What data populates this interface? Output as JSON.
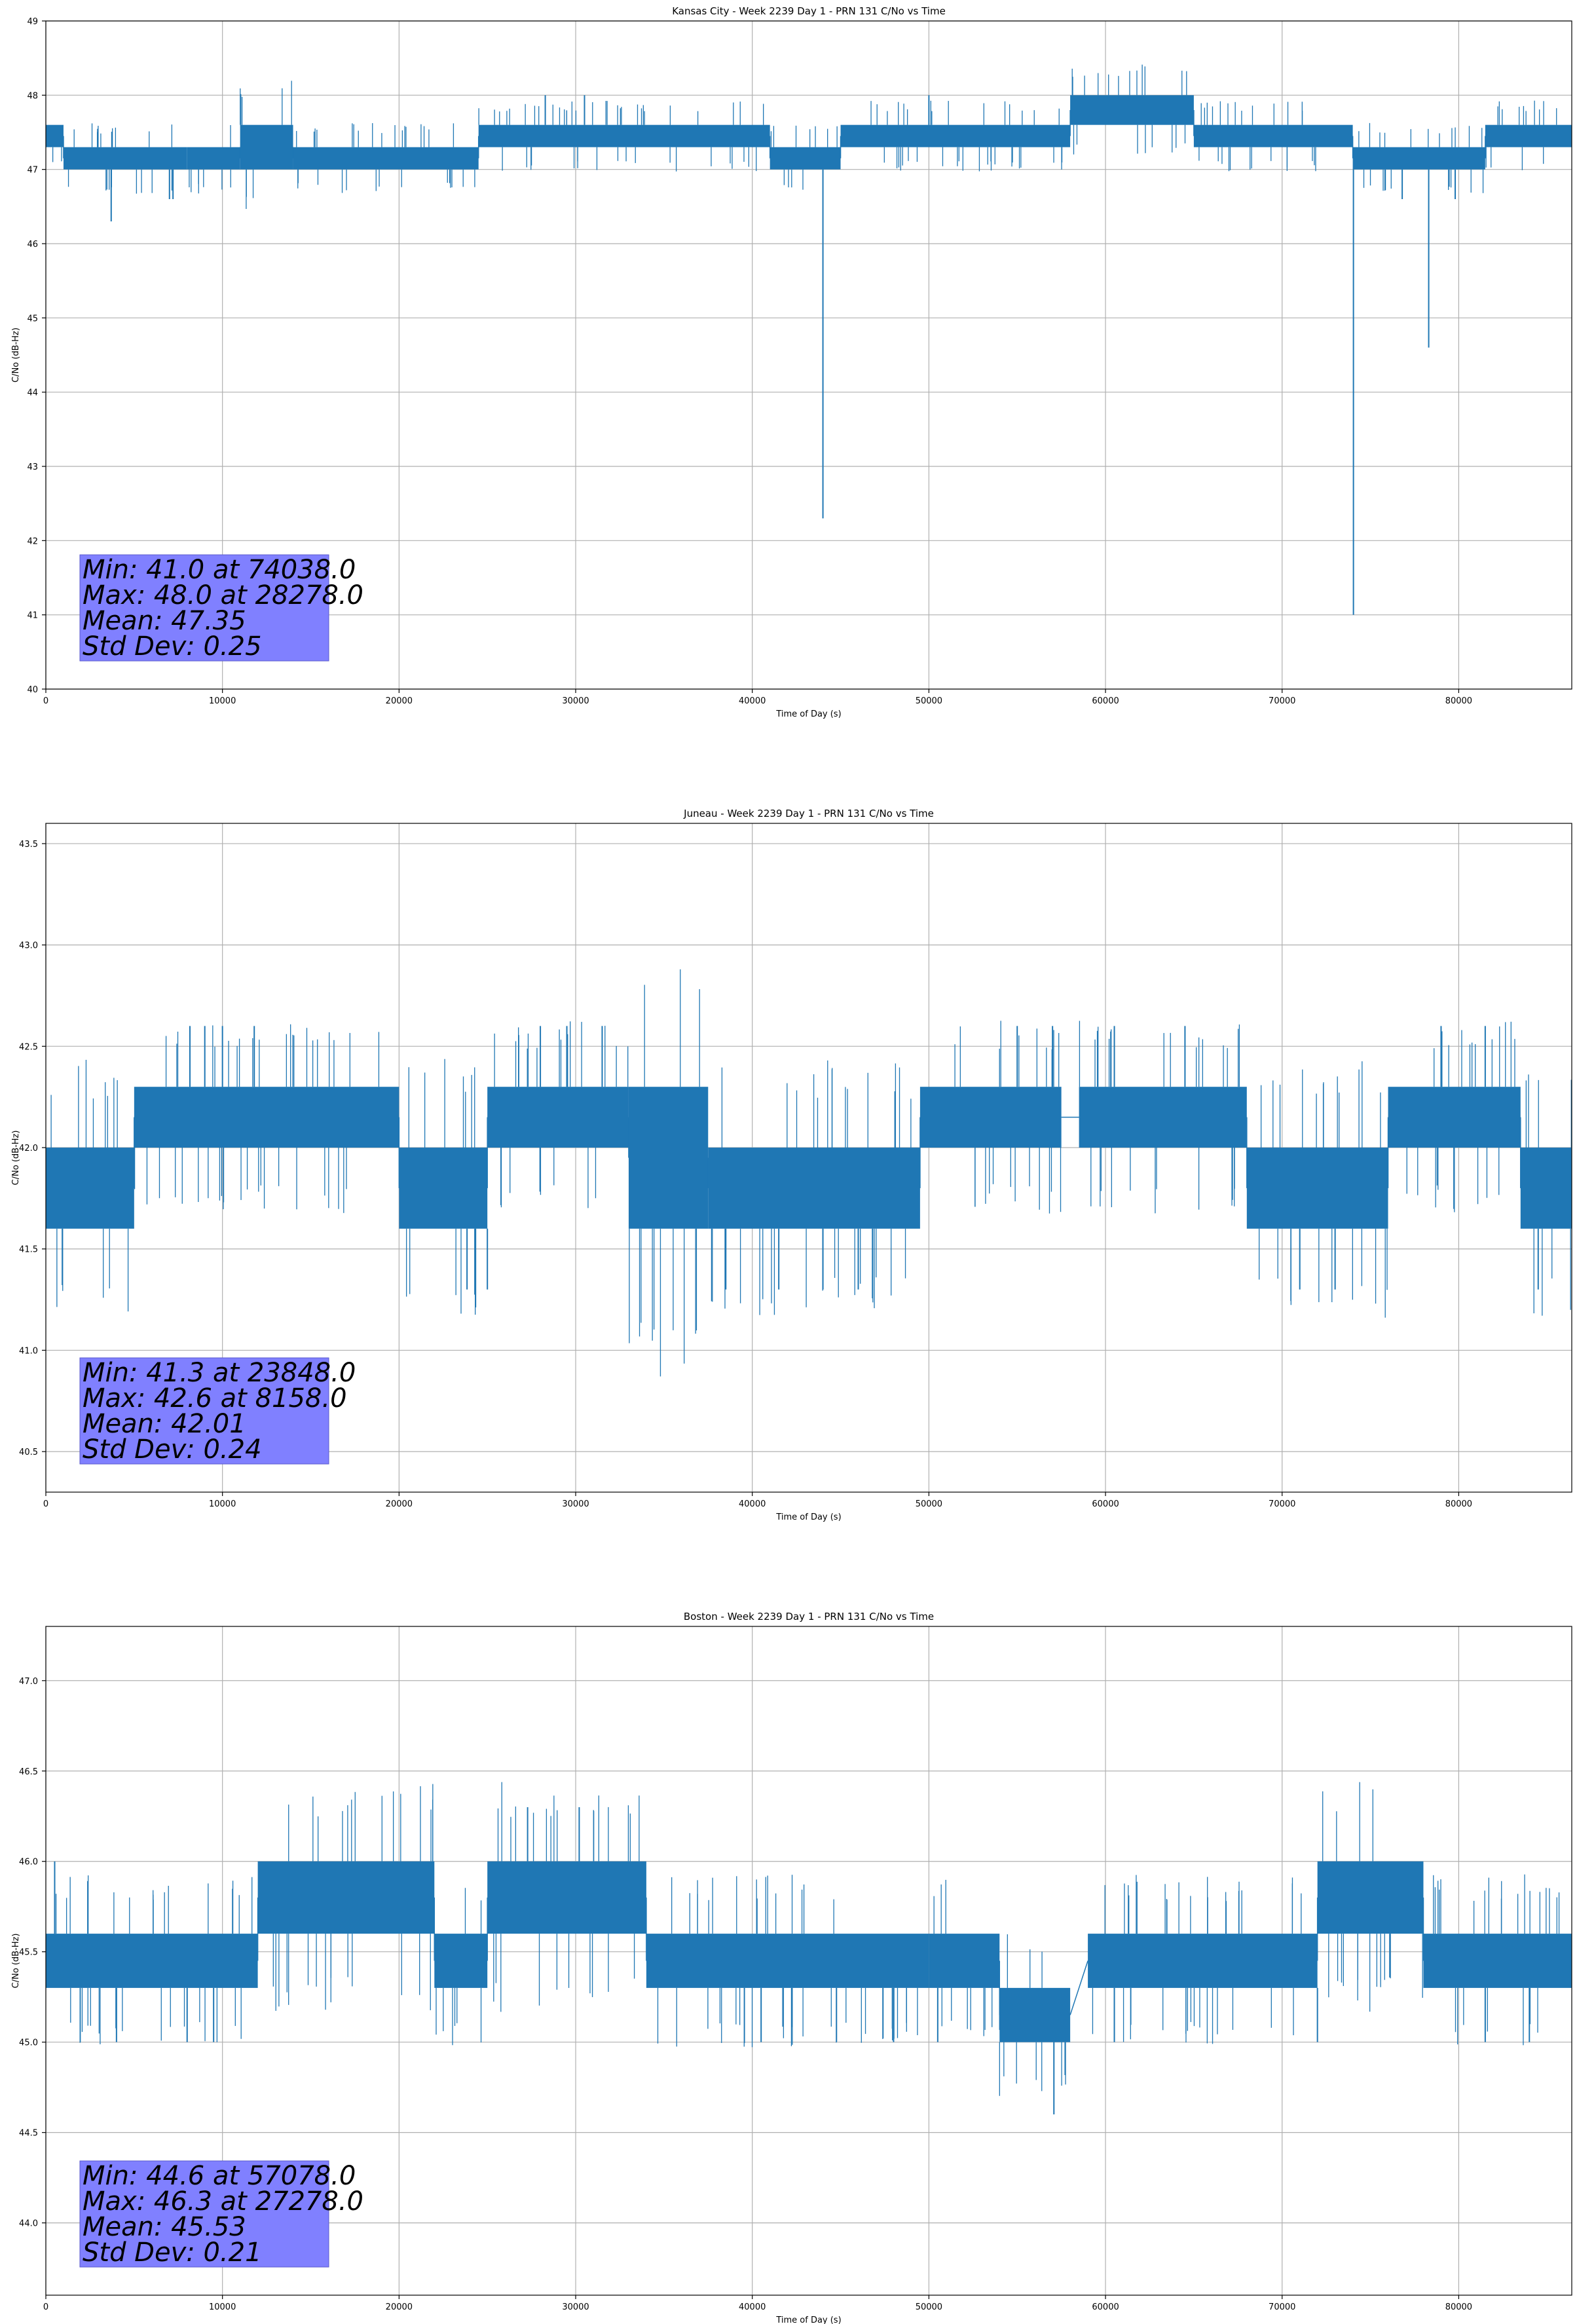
{
  "chart_data": [
    {
      "type": "line",
      "title": "Kansas City - Week 2239 Day 1 - PRN 131 C/No vs Time",
      "xlabel": "Time of Day (s)",
      "ylabel": "C/No (dB-Hz)",
      "xlim": [
        0,
        86400
      ],
      "ylim": [
        40,
        49
      ],
      "xticks": [
        0,
        10000,
        20000,
        30000,
        40000,
        50000,
        60000,
        70000,
        80000
      ],
      "xtick_labels": [
        "0",
        "10000",
        "20000",
        "30000",
        "40000",
        "50000",
        "60000",
        "70000",
        "80000"
      ],
      "yticks": [
        40,
        41,
        42,
        43,
        44,
        45,
        46,
        47,
        48,
        49
      ],
      "ytick_labels": [
        "40",
        "41",
        "42",
        "43",
        "44",
        "45",
        "46",
        "47",
        "48",
        "49"
      ],
      "grid": true,
      "color": "#1f77b4",
      "stats_box_color": "#8080ff",
      "band_segments": [
        [
          0,
          1000,
          47.3,
          47.6
        ],
        [
          1000,
          8000,
          47.0,
          47.3
        ],
        [
          8000,
          11000,
          47.0,
          47.3
        ],
        [
          11000,
          14000,
          47.0,
          47.6
        ],
        [
          14000,
          24500,
          47.0,
          47.3
        ],
        [
          24500,
          41000,
          47.3,
          47.6
        ],
        [
          41000,
          45000,
          47.0,
          47.3
        ],
        [
          45000,
          58000,
          47.3,
          47.6
        ],
        [
          58000,
          65000,
          47.6,
          48.0
        ],
        [
          65000,
          74000,
          47.3,
          47.6
        ],
        [
          74000,
          81500,
          47.0,
          47.3
        ],
        [
          81500,
          86400,
          47.3,
          47.6
        ]
      ],
      "spikes": [
        [
          3700,
          46.3
        ],
        [
          7000,
          46.6
        ],
        [
          7200,
          46.6
        ],
        [
          28278,
          48.0
        ],
        [
          30500,
          48.0
        ],
        [
          44000,
          42.3
        ],
        [
          50000,
          48.0
        ],
        [
          74038,
          41.0
        ],
        [
          76800,
          46.6
        ],
        [
          78300,
          44.6
        ],
        [
          79800,
          46.6
        ]
      ],
      "stats": {
        "min": "Min: 41.0 at 74038.0",
        "max": "Max: 48.0 at 28278.0",
        "mean": "Mean: 47.35",
        "std": "Std Dev: 0.25"
      }
    },
    {
      "type": "line",
      "title": "Juneau - Week 2239 Day 1 - PRN 131 C/No vs Time",
      "xlabel": "Time of Day (s)",
      "ylabel": "C/No (dB-Hz)",
      "xlim": [
        0,
        86400
      ],
      "ylim": [
        40.3,
        43.6
      ],
      "xticks": [
        0,
        10000,
        20000,
        30000,
        40000,
        50000,
        60000,
        70000,
        80000
      ],
      "xtick_labels": [
        "0",
        "10000",
        "20000",
        "30000",
        "40000",
        "50000",
        "60000",
        "70000",
        "80000"
      ],
      "yticks": [
        40.5,
        41.0,
        41.5,
        42.0,
        42.5,
        43.0,
        43.5
      ],
      "ytick_labels": [
        "40.5",
        "41.0",
        "41.5",
        "42.0",
        "42.5",
        "43.0",
        "43.5"
      ],
      "grid": true,
      "color": "#1f77b4",
      "stats_box_color": "#8080ff",
      "band_segments": [
        [
          0,
          5000,
          41.6,
          42.0
        ],
        [
          5000,
          20000,
          42.0,
          42.3
        ],
        [
          20000,
          25000,
          41.6,
          42.0
        ],
        [
          25000,
          33000,
          42.0,
          42.3
        ],
        [
          33000,
          37500,
          41.6,
          42.3
        ],
        [
          37500,
          49500,
          41.6,
          42.0
        ],
        [
          49500,
          57500,
          42.0,
          42.3
        ],
        [
          58500,
          68000,
          42.0,
          42.3
        ],
        [
          68000,
          76000,
          41.6,
          42.0
        ],
        [
          76000,
          83500,
          42.0,
          42.3
        ],
        [
          83500,
          86400,
          41.6,
          42.0
        ]
      ],
      "spikes": [
        [
          8158,
          42.6
        ],
        [
          9000,
          42.6
        ],
        [
          10000,
          42.6
        ],
        [
          11800,
          42.6
        ],
        [
          23848,
          41.3
        ],
        [
          25000,
          41.3
        ],
        [
          28000,
          42.6
        ],
        [
          29500,
          42.6
        ],
        [
          31500,
          42.6
        ],
        [
          38500,
          41.3
        ],
        [
          41500,
          41.3
        ],
        [
          44000,
          41.3
        ],
        [
          46000,
          41.3
        ],
        [
          55000,
          42.6
        ],
        [
          57000,
          42.6
        ],
        [
          60500,
          42.6
        ],
        [
          64500,
          42.6
        ],
        [
          71000,
          41.3
        ],
        [
          73000,
          41.3
        ],
        [
          79000,
          42.6
        ],
        [
          81500,
          42.6
        ],
        [
          84500,
          41.3
        ]
      ],
      "stats": {
        "min": "Min: 41.3 at 23848.0",
        "max": "Max: 42.6 at 8158.0",
        "mean": "Mean: 42.01",
        "std": "Std Dev: 0.24"
      }
    },
    {
      "type": "line",
      "title": "Boston - Week 2239 Day 1 - PRN 131 C/No vs Time",
      "xlabel": "Time of Day (s)",
      "ylabel": "C/No (dB-Hz)",
      "xlim": [
        0,
        86400
      ],
      "ylim": [
        43.6,
        47.3
      ],
      "xticks": [
        0,
        10000,
        20000,
        30000,
        40000,
        50000,
        60000,
        70000,
        80000
      ],
      "xtick_labels": [
        "0",
        "10000",
        "20000",
        "30000",
        "40000",
        "50000",
        "60000",
        "70000",
        "80000"
      ],
      "yticks": [
        44.0,
        44.5,
        45.0,
        45.5,
        46.0,
        46.5,
        47.0
      ],
      "ytick_labels": [
        "44.0",
        "44.5",
        "45.0",
        "45.5",
        "46.0",
        "46.5",
        "47.0"
      ],
      "grid": true,
      "color": "#1f77b4",
      "stats_box_color": "#8080ff",
      "band_segments": [
        [
          0,
          12000,
          45.3,
          45.6
        ],
        [
          12000,
          22000,
          45.6,
          46.0
        ],
        [
          22000,
          25000,
          45.3,
          45.6
        ],
        [
          25000,
          34000,
          45.6,
          46.0
        ],
        [
          34000,
          50000,
          45.3,
          45.6
        ],
        [
          50000,
          54000,
          45.3,
          45.6
        ],
        [
          54000,
          58000,
          45.0,
          45.3
        ],
        [
          59000,
          72000,
          45.3,
          45.6
        ],
        [
          72000,
          78000,
          45.6,
          46.0
        ],
        [
          78000,
          86400,
          45.3,
          45.6
        ]
      ],
      "spikes": [
        [
          500,
          46.0
        ],
        [
          4000,
          45.0
        ],
        [
          8000,
          45.0
        ],
        [
          9500,
          45.0
        ],
        [
          27278,
          46.3
        ],
        [
          30200,
          46.3
        ],
        [
          40500,
          45.0
        ],
        [
          48000,
          45.0
        ],
        [
          50500,
          45.0
        ],
        [
          57078,
          44.6
        ],
        [
          60500,
          45.0
        ],
        [
          72000,
          45.0
        ],
        [
          81500,
          45.0
        ],
        [
          84000,
          45.0
        ]
      ],
      "stats": {
        "min": "Min: 44.6 at 57078.0",
        "max": "Max: 46.3 at 27278.0",
        "mean": "Mean: 45.53",
        "std": "Std Dev: 0.21"
      }
    }
  ]
}
